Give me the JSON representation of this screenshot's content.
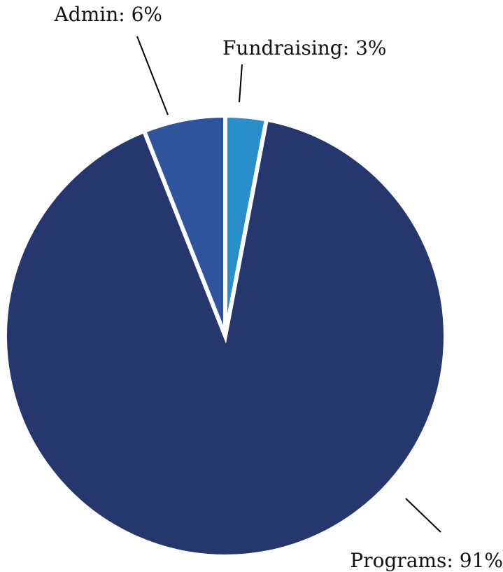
{
  "chart_data": {
    "type": "pie",
    "title": "",
    "slices": [
      {
        "label": "Fundraising",
        "value": 3,
        "display": "Fundraising: 3%",
        "color": "#2a8ecb"
      },
      {
        "label": "Programs",
        "value": 91,
        "display": "Programs: 91%",
        "color": "#26376d"
      },
      {
        "label": "Admin",
        "value": 6,
        "display": "Admin: 6%",
        "color": "#2e549c"
      }
    ],
    "start": "top (12 o'clock)",
    "direction": "clockwise",
    "legend": "none"
  }
}
